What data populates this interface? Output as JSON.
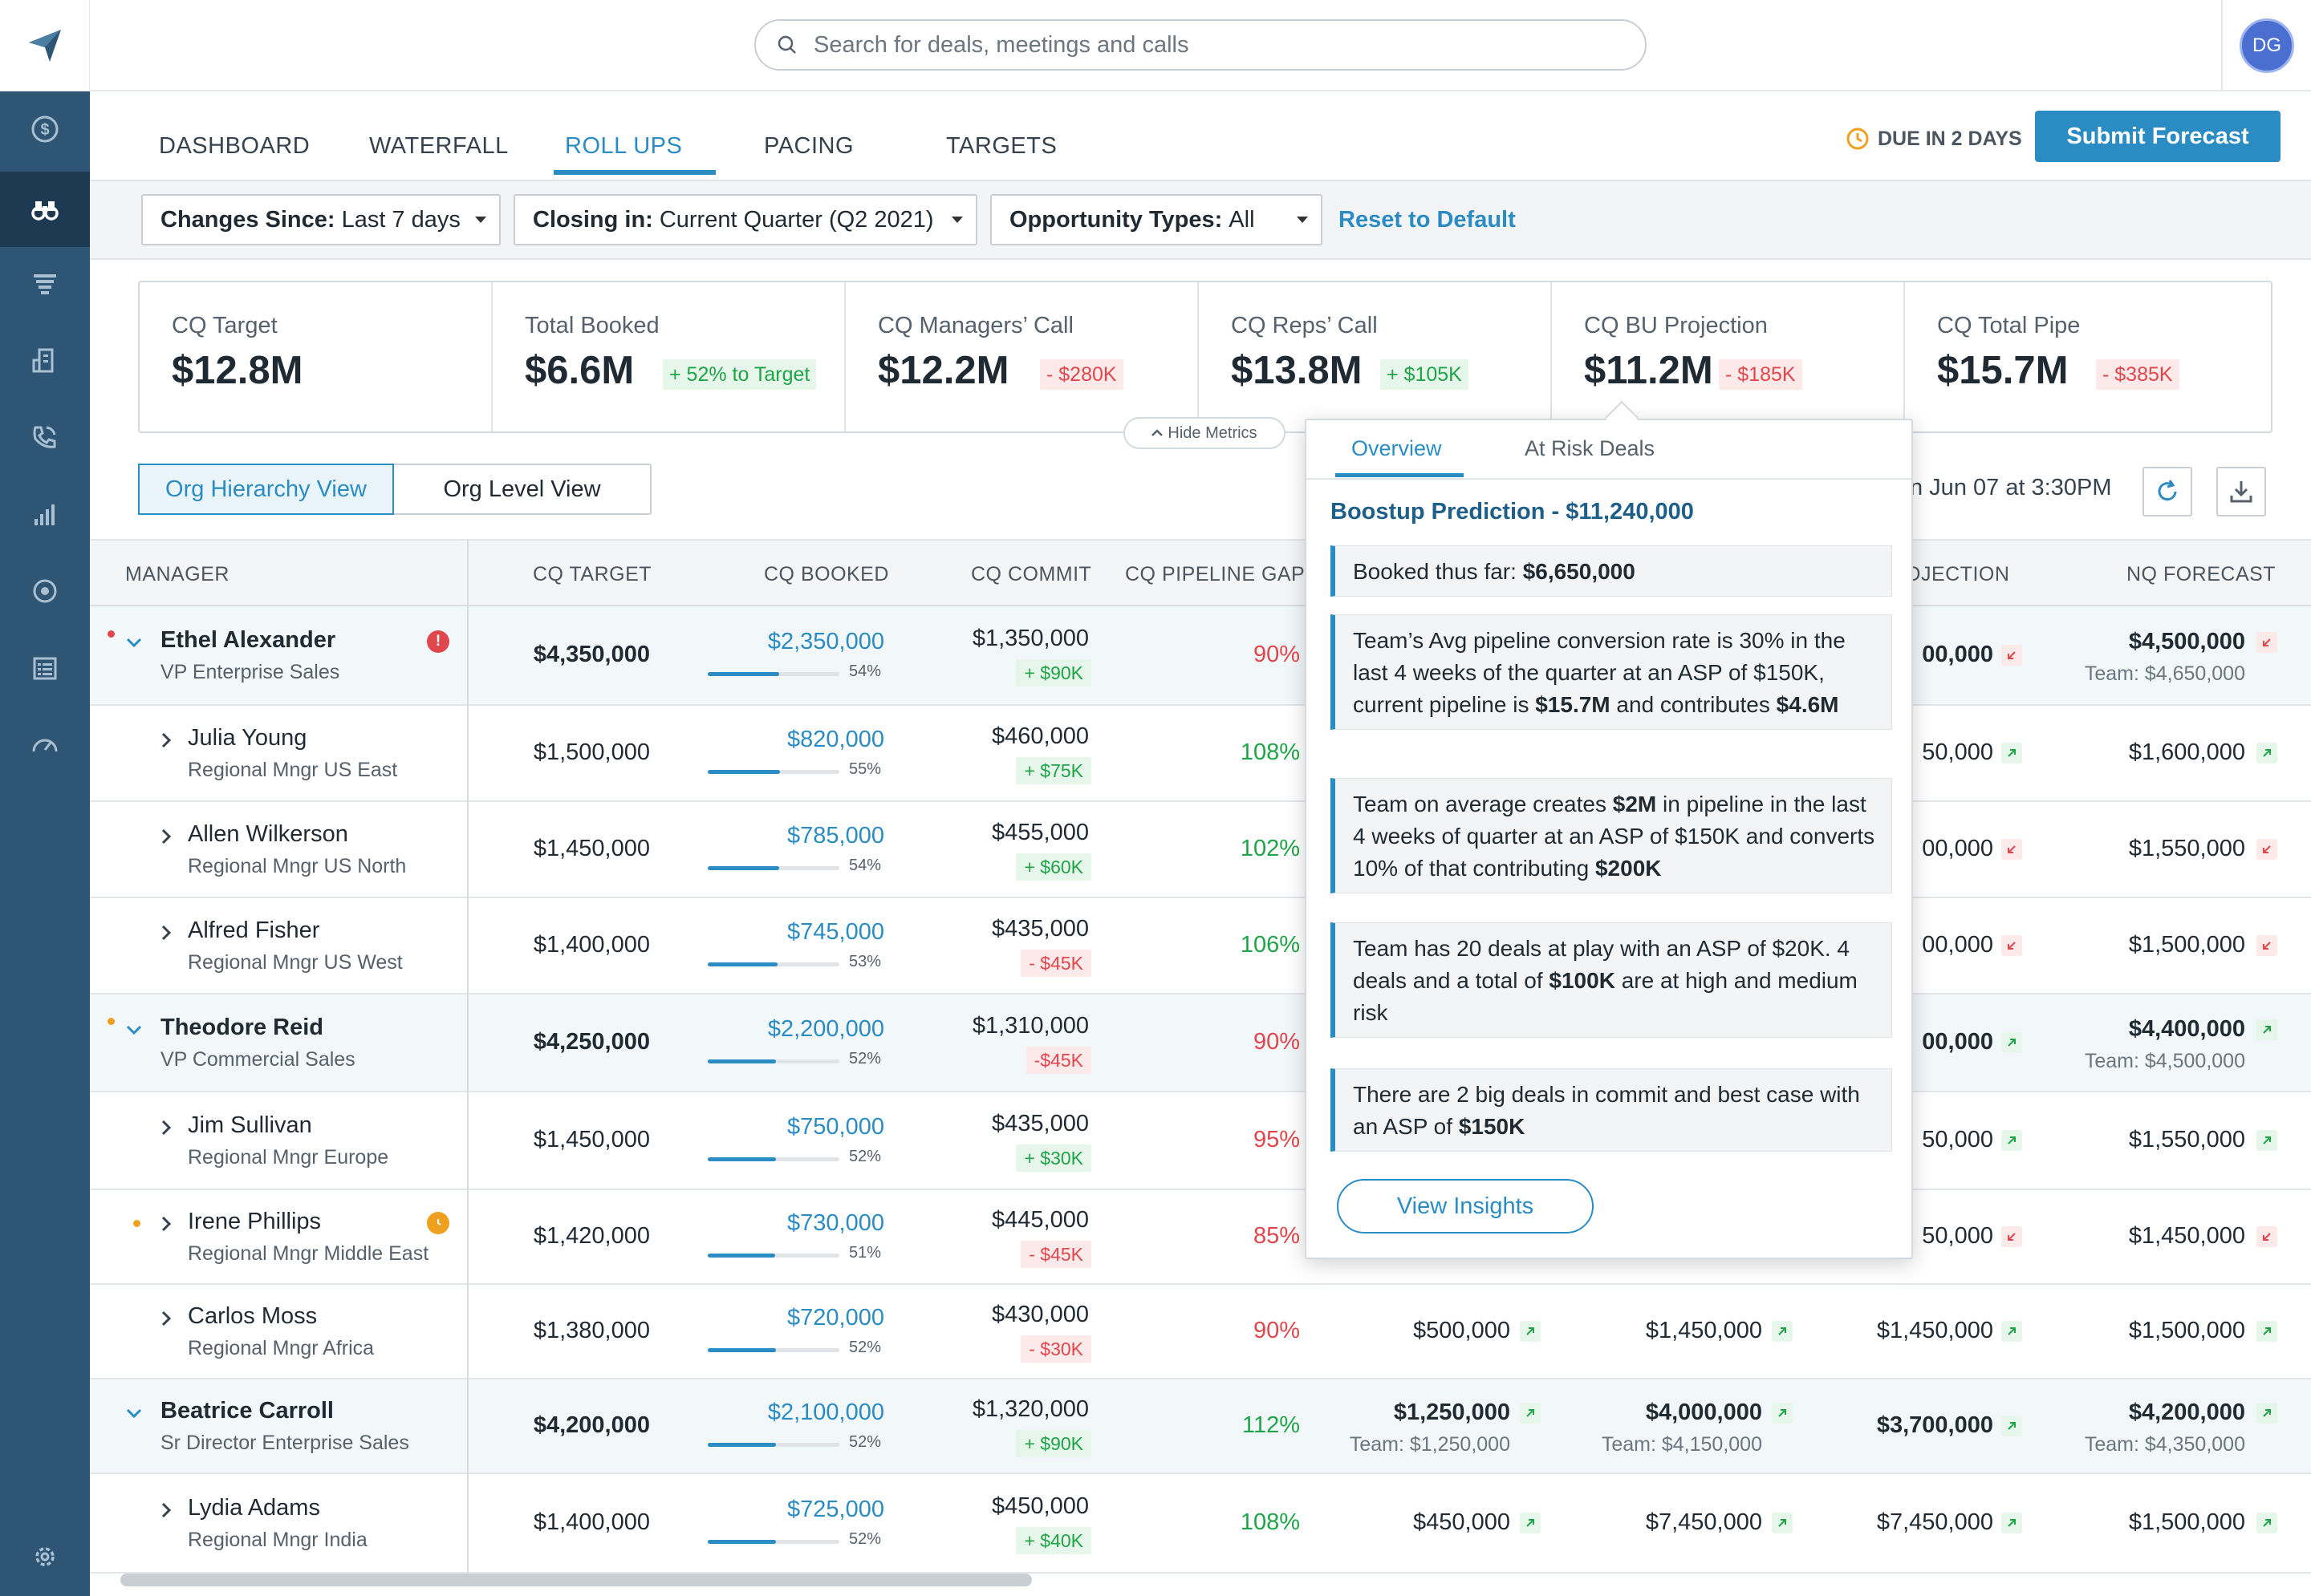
{
  "search": {
    "placeholder": "Search for deals, meetings and calls"
  },
  "user": {
    "initials": "DG"
  },
  "tabs": [
    "DASHBOARD",
    "WATERFALL",
    "ROLL UPS",
    "PACING",
    "TARGETS"
  ],
  "active_tab": "ROLL UPS",
  "due": {
    "label": "DUE IN 2 DAYS"
  },
  "submit_label": "Submit Forecast",
  "filters": {
    "changes": {
      "key": "Changes Since:",
      "value": "Last 7 days"
    },
    "closing": {
      "key": "Closing in:",
      "value": "Current Quarter (Q2 2021)"
    },
    "types": {
      "key": "Opportunity Types:",
      "value": "All"
    },
    "reset": "Reset to Default"
  },
  "metrics": [
    {
      "label": "CQ Target",
      "value": "$12.8M",
      "delta": ""
    },
    {
      "label": "Total Booked",
      "value": "$6.6M",
      "delta": "+ 52% to Target",
      "delta_type": "pos"
    },
    {
      "label": "CQ Managers’ Call",
      "value": "$12.2M",
      "delta": "- $280K",
      "delta_type": "neg"
    },
    {
      "label": "CQ Reps’ Call",
      "value": "$13.8M",
      "delta": "+ $105K",
      "delta_type": "pos"
    },
    {
      "label": "CQ BU Projection",
      "value": "$11.2M",
      "delta": "- $185K",
      "delta_type": "neg"
    },
    {
      "label": "CQ Total Pipe",
      "value": "$15.7M",
      "delta": "- $385K",
      "delta_type": "neg"
    }
  ],
  "hide_metrics": "Hide Metrics",
  "views": {
    "org_hierarchy": "Org Hierarchy View",
    "org_level": "Org Level View"
  },
  "last_updated": "n Jun 07 at 3:30PM",
  "columns": {
    "manager": "MANAGER",
    "target": "CQ TARGET",
    "booked": "CQ BOOKED",
    "commit": "CQ COMMIT",
    "gap": "CQ PIPELINE GAP",
    "projection": "OJECTION",
    "nq": "NQ FORECAST"
  },
  "rows": [
    {
      "name": "Ethel Alexander",
      "title": "VP Enterprise Sales",
      "lead": true,
      "dot": "#e0474c",
      "alert": "!",
      "alert_color": "#e0474c",
      "target": "$4,350,000",
      "booked": "$2,350,000",
      "pct": "54%",
      "fill": 0.54,
      "commit": "$1,350,000",
      "chip": "+ $90K",
      "chip_type": "pos",
      "gap": "90%",
      "gap_type": "red",
      "proj": "00,000",
      "proj_dir": "down",
      "nq": "$4,500,000",
      "nq_dir": "down",
      "team_nq": "Team: $4,650,000"
    },
    {
      "name": "Julia Young",
      "title": "Regional Mngr US East",
      "lead": false,
      "target": "$1,500,000",
      "booked": "$820,000",
      "pct": "55%",
      "fill": 0.55,
      "commit": "$460,000",
      "chip": "+ $75K",
      "chip_type": "pos",
      "gap": "108%",
      "gap_type": "green",
      "proj": "50,000",
      "proj_dir": "up",
      "nq": "$1,600,000",
      "nq_dir": "up"
    },
    {
      "name": "Allen Wilkerson",
      "title": "Regional Mngr US North",
      "lead": false,
      "target": "$1,450,000",
      "booked": "$785,000",
      "pct": "54%",
      "fill": 0.54,
      "commit": "$455,000",
      "chip": "+ $60K",
      "chip_type": "pos",
      "gap": "102%",
      "gap_type": "green",
      "proj": "00,000",
      "proj_dir": "down",
      "nq": "$1,550,000",
      "nq_dir": "down"
    },
    {
      "name": "Alfred Fisher",
      "title": "Regional Mngr US West",
      "lead": false,
      "target": "$1,400,000",
      "booked": "$745,000",
      "pct": "53%",
      "fill": 0.53,
      "commit": "$435,000",
      "chip": "- $45K",
      "chip_type": "neg",
      "gap": "106%",
      "gap_type": "green",
      "proj": "00,000",
      "proj_dir": "down",
      "nq": "$1,500,000",
      "nq_dir": "down"
    },
    {
      "name": "Theodore Reid",
      "title": "VP Commercial Sales",
      "lead": true,
      "dot": "#f0a020",
      "target": "$4,250,000",
      "booked": "$2,200,000",
      "pct": "52%",
      "fill": 0.52,
      "commit": "$1,310,000",
      "chip": "-$45K",
      "chip_type": "neg",
      "gap": "90%",
      "gap_type": "red",
      "proj": "00,000",
      "proj_dir": "up",
      "nq": "$4,400,000",
      "nq_dir": "up",
      "team_nq": "Team: $4,500,000"
    },
    {
      "name": "Jim Sullivan",
      "title": "Regional Mngr Europe",
      "lead": false,
      "target": "$1,450,000",
      "booked": "$750,000",
      "pct": "52%",
      "fill": 0.52,
      "commit": "$435,000",
      "chip": "+ $30K",
      "chip_type": "pos",
      "gap": "95%",
      "gap_type": "red",
      "proj": "50,000",
      "proj_dir": "up",
      "nq": "$1,550,000",
      "nq_dir": "up"
    },
    {
      "name": "Irene Phillips",
      "title": "Regional Mngr Middle East",
      "lead": false,
      "dot": "#f0a020",
      "alert": "clock",
      "alert_color": "#f0a020",
      "target": "$1,420,000",
      "booked": "$730,000",
      "pct": "51%",
      "fill": 0.51,
      "commit": "$445,000",
      "chip": "- $45K",
      "chip_type": "neg",
      "gap": "85%",
      "gap_type": "red",
      "proj": "50,000",
      "proj_dir": "down",
      "nq": "$1,450,000",
      "nq_dir": "down"
    },
    {
      "name": "Carlos Moss",
      "title": "Regional Mngr Africa",
      "lead": false,
      "target": "$1,380,000",
      "booked": "$720,000",
      "pct": "52%",
      "fill": 0.52,
      "commit": "$430,000",
      "chip": "- $30K",
      "chip_type": "neg",
      "gap": "90%",
      "gap_type": "red",
      "c5": "$500,000",
      "c6": "$1,450,000",
      "proj": "$1,450,000",
      "proj_dir": "up",
      "nq": "$1,500,000",
      "nq_dir": "up"
    },
    {
      "name": "Beatrice Carroll",
      "title": "Sr Director Enterprise Sales",
      "lead": true,
      "target": "$4,200,000",
      "booked": "$2,100,000",
      "pct": "52%",
      "fill": 0.52,
      "commit": "$1,320,000",
      "chip": "+ $90K",
      "chip_type": "pos",
      "gap": "112%",
      "gap_type": "green",
      "c5": "$1,250,000",
      "c5_team": "Team: $1,250,000",
      "c6": "$4,000,000",
      "c6_team": "Team: $4,150,000",
      "proj": "$3,700,000",
      "proj_dir": "up",
      "nq": "$4,200,000",
      "nq_dir": "up",
      "team_nq": "Team: $4,350,000"
    },
    {
      "name": "Lydia Adams",
      "title": "Regional Mngr India",
      "lead": false,
      "target": "$1,400,000",
      "booked": "$725,000",
      "pct": "52%",
      "fill": 0.52,
      "commit": "$450,000",
      "chip": "+ $40K",
      "chip_type": "pos",
      "gap": "108%",
      "gap_type": "green",
      "c5": "$450,000",
      "c6": "$7,450,000",
      "proj": "$7,450,000",
      "proj_dir": "up",
      "nq": "$1,500,000",
      "nq_dir": "up"
    }
  ],
  "popover": {
    "tabs": [
      "Overview",
      "At Risk Deals"
    ],
    "title": "Boostup Prediction - $11,240,000",
    "insights_html": [
      "Booked thus far: <b>$6,650,000</b>",
      "Team’s Avg pipeline conversion rate is 30% in the last 4 weeks of the quarter at an ASP of $150K, current pipeline is <b>$15.7M</b> and contributes <b>$4.6M</b>",
      "Team on average creates <b>$2M</b> in pipeline in the last 4 weeks of quarter at an ASP of $150K and converts 10% of that contributing <b>$200K</b>",
      "Team has 20 deals at play with an ASP of $20K. 4 deals and a total of <b>$100K</b> are at high and medium risk",
      "There are 2 big deals in commit and best case with an ASP of <b>$150K</b>"
    ],
    "view_insights": "View Insights"
  },
  "colors": {
    "accent": "#2b8cc4",
    "sidebar": "#2e5573",
    "positive": "#1fa447",
    "negative": "#e0474c"
  }
}
